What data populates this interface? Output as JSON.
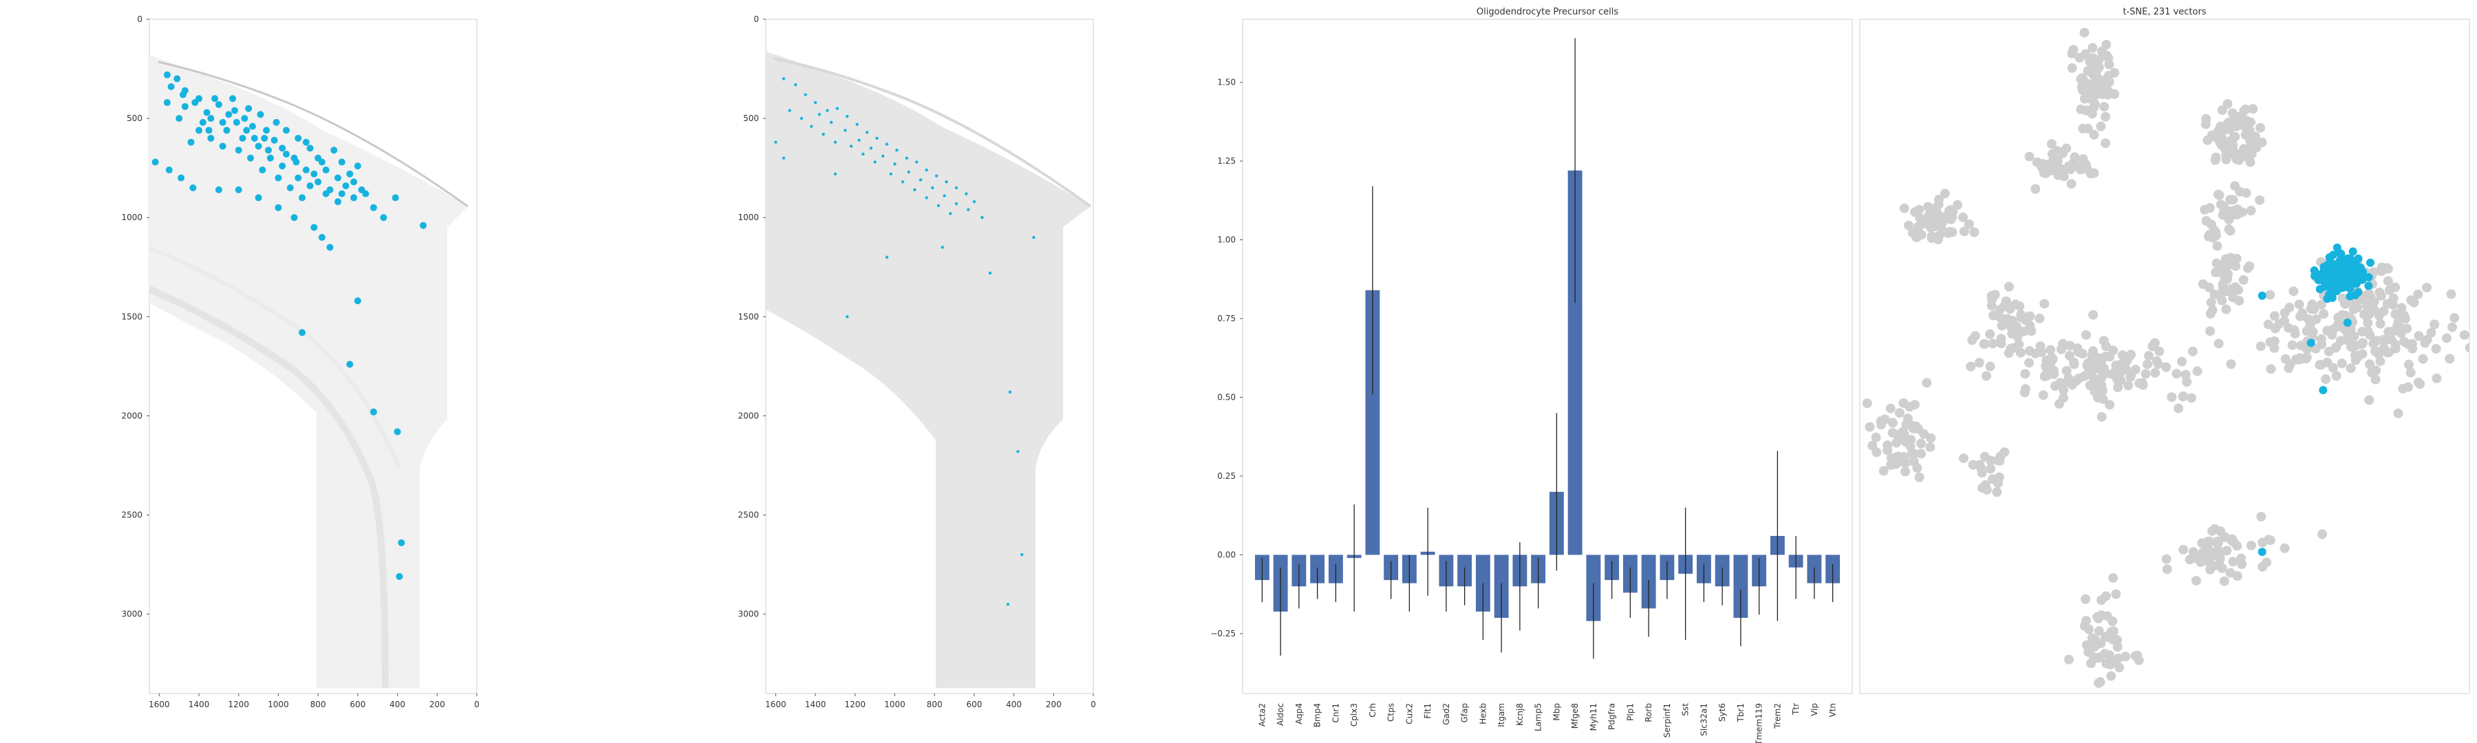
{
  "colors": {
    "highlight": "#16b3df",
    "bar": "#4c6fad",
    "background_cells": "#cfcfcf",
    "tissue": "#dcdcdc",
    "errorbar": "#222222",
    "frame": "#cccccc"
  },
  "chart_data": [
    {
      "id": "spatial-raw",
      "type": "scatter",
      "title": "",
      "xlabel": "",
      "ylabel": "",
      "xlim": [
        1650,
        0
      ],
      "ylim": [
        3400,
        0
      ],
      "x_ticks": [
        1600,
        1400,
        1200,
        1000,
        800,
        600,
        400,
        200,
        0
      ],
      "y_ticks": [
        0,
        500,
        1000,
        1500,
        2000,
        2500,
        3000
      ],
      "grid": false,
      "series": [
        {
          "points": [
            [
              1560,
              280
            ],
            [
              1510,
              300
            ],
            [
              1470,
              360
            ],
            [
              1420,
              420
            ],
            [
              1360,
              470
            ],
            [
              1300,
              430
            ],
            [
              1250,
              480
            ],
            [
              1210,
              520
            ],
            [
              1160,
              560
            ],
            [
              1120,
              600
            ],
            [
              1060,
              560
            ],
            [
              1020,
              610
            ],
            [
              980,
              650
            ],
            [
              920,
              700
            ],
            [
              860,
              620
            ],
            [
              800,
              700
            ],
            [
              760,
              760
            ],
            [
              700,
              800
            ],
            [
              660,
              840
            ],
            [
              620,
              900
            ],
            [
              1400,
              560
            ],
            [
              1340,
              600
            ],
            [
              1280,
              640
            ],
            [
              1200,
              660
            ],
            [
              1140,
              700
            ],
            [
              1080,
              760
            ],
            [
              1000,
              800
            ],
            [
              940,
              850
            ],
            [
              880,
              900
            ],
            [
              820,
              780
            ],
            [
              1560,
              420
            ],
            [
              1500,
              500
            ],
            [
              1440,
              620
            ],
            [
              1380,
              520
            ],
            [
              1260,
              560
            ],
            [
              1180,
              600
            ],
            [
              1100,
              640
            ],
            [
              1040,
              700
            ],
            [
              980,
              740
            ],
            [
              900,
              800
            ],
            [
              840,
              840
            ],
            [
              760,
              880
            ],
            [
              700,
              920
            ],
            [
              640,
              780
            ],
            [
              580,
              860
            ],
            [
              520,
              950
            ],
            [
              470,
              1000
            ],
            [
              410,
              900
            ],
            [
              1320,
              400
            ],
            [
              1230,
              400
            ],
            [
              1150,
              450
            ],
            [
              1090,
              480
            ],
            [
              1010,
              520
            ],
            [
              960,
              560
            ],
            [
              900,
              600
            ],
            [
              840,
              650
            ],
            [
              780,
              720
            ],
            [
              720,
              660
            ],
            [
              680,
              720
            ],
            [
              600,
              740
            ],
            [
              1620,
              720
            ],
            [
              1550,
              760
            ],
            [
              1490,
              800
            ],
            [
              1430,
              850
            ],
            [
              1300,
              860
            ],
            [
              1200,
              860
            ],
            [
              1100,
              900
            ],
            [
              1000,
              950
            ],
            [
              920,
              1000
            ],
            [
              820,
              1050
            ],
            [
              780,
              1100
            ],
            [
              740,
              1150
            ],
            [
              270,
              1040
            ],
            [
              600,
              1420
            ],
            [
              880,
              1580
            ],
            [
              640,
              1740
            ],
            [
              520,
              1980
            ],
            [
              400,
              2080
            ],
            [
              380,
              2640
            ],
            [
              390,
              2810
            ],
            [
              1540,
              340
            ],
            [
              1480,
              380
            ],
            [
              1400,
              400
            ],
            [
              1340,
              500
            ],
            [
              1280,
              520
            ],
            [
              1220,
              460
            ],
            [
              1170,
              500
            ],
            [
              1130,
              540
            ],
            [
              1070,
              600
            ],
            [
              1050,
              660
            ],
            [
              960,
              680
            ],
            [
              910,
              720
            ],
            [
              860,
              760
            ],
            [
              800,
              820
            ],
            [
              740,
              860
            ],
            [
              680,
              880
            ],
            [
              620,
              820
            ],
            [
              560,
              880
            ],
            [
              1470,
              440
            ],
            [
              1350,
              560
            ]
          ]
        }
      ]
    },
    {
      "id": "spatial-cells",
      "type": "scatter",
      "title": "",
      "xlabel": "",
      "ylabel": "",
      "xlim": [
        1650,
        0
      ],
      "ylim": [
        3400,
        0
      ],
      "x_ticks": [
        1600,
        1400,
        1200,
        1000,
        800,
        600,
        400,
        200,
        0
      ],
      "y_ticks": [
        0,
        500,
        1000,
        1500,
        2000,
        2500,
        3000
      ],
      "grid": false,
      "series": [
        {
          "points": [
            [
              1560,
              300
            ],
            [
              1500,
              330
            ],
            [
              1450,
              380
            ],
            [
              1400,
              420
            ],
            [
              1340,
              460
            ],
            [
              1290,
              450
            ],
            [
              1240,
              490
            ],
            [
              1190,
              530
            ],
            [
              1140,
              570
            ],
            [
              1090,
              600
            ],
            [
              1040,
              630
            ],
            [
              990,
              660
            ],
            [
              940,
              700
            ],
            [
              890,
              720
            ],
            [
              840,
              760
            ],
            [
              790,
              790
            ],
            [
              740,
              820
            ],
            [
              690,
              850
            ],
            [
              640,
              880
            ],
            [
              600,
              920
            ],
            [
              1420,
              540
            ],
            [
              1360,
              580
            ],
            [
              1300,
              620
            ],
            [
              1220,
              640
            ],
            [
              1160,
              680
            ],
            [
              1100,
              720
            ],
            [
              1020,
              780
            ],
            [
              960,
              820
            ],
            [
              900,
              860
            ],
            [
              840,
              900
            ],
            [
              780,
              940
            ],
            [
              720,
              980
            ],
            [
              1530,
              460
            ],
            [
              1470,
              500
            ],
            [
              1380,
              480
            ],
            [
              1320,
              520
            ],
            [
              1250,
              560
            ],
            [
              1180,
              610
            ],
            [
              1120,
              650
            ],
            [
              1060,
              690
            ],
            [
              1000,
              730
            ],
            [
              930,
              770
            ],
            [
              870,
              810
            ],
            [
              810,
              850
            ],
            [
              750,
              890
            ],
            [
              690,
              930
            ],
            [
              630,
              960
            ],
            [
              560,
              1000
            ],
            [
              1600,
              620
            ],
            [
              1560,
              700
            ],
            [
              1240,
              1500
            ],
            [
              1040,
              1200
            ],
            [
              760,
              1150
            ],
            [
              520,
              1280
            ],
            [
              420,
              1880
            ],
            [
              380,
              2180
            ],
            [
              360,
              2700
            ],
            [
              430,
              2950
            ],
            [
              300,
              1100
            ],
            [
              1300,
              780
            ]
          ]
        }
      ]
    },
    {
      "id": "bar-opc",
      "type": "bar",
      "title": "Oligodendrocyte Precursor cells",
      "xlabel": "",
      "ylabel": "",
      "ylim": [
        -0.44,
        1.7
      ],
      "y_ticks": [
        -0.25,
        0.0,
        0.25,
        0.5,
        0.75,
        1.0,
        1.25,
        1.5
      ],
      "y_tick_labels": [
        "−0.25",
        "0.00",
        "0.25",
        "0.50",
        "0.75",
        "1.00",
        "1.25",
        "1.50"
      ],
      "categories": [
        "Acta2",
        "Aldoc",
        "Aqp4",
        "Bmp4",
        "Cnr1",
        "Cplx3",
        "Crh",
        "Ctps",
        "Cux2",
        "Flt1",
        "Gad2",
        "Gfap",
        "Hexb",
        "Itgam",
        "Kcnj8",
        "Lamp5",
        "Mbp",
        "Mfge8",
        "Myh11",
        "Pdgfra",
        "Plp1",
        "Rorb",
        "Serpinf1",
        "Sst",
        "Slc32a1",
        "Syt6",
        "Tbr1",
        "Tmem119",
        "Trem2",
        "Ttr",
        "Vip",
        "Vtn"
      ],
      "values": [
        -0.08,
        -0.18,
        -0.1,
        -0.09,
        -0.09,
        -0.01,
        0.84,
        -0.08,
        -0.09,
        0.01,
        -0.1,
        -0.1,
        -0.18,
        -0.2,
        -0.1,
        -0.09,
        0.2,
        1.22,
        -0.21,
        -0.08,
        -0.12,
        -0.17,
        -0.08,
        -0.06,
        -0.09,
        -0.1,
        -0.2,
        -0.1,
        0.06,
        -0.04,
        -0.09,
        -0.09
      ],
      "errors": [
        0.07,
        0.14,
        0.07,
        0.05,
        0.06,
        0.17,
        0.33,
        0.06,
        0.09,
        0.14,
        0.08,
        0.06,
        0.09,
        0.11,
        0.14,
        0.08,
        0.25,
        0.42,
        0.12,
        0.06,
        0.08,
        0.09,
        0.06,
        0.21,
        0.06,
        0.06,
        0.09,
        0.09,
        0.27,
        0.1,
        0.05,
        0.06
      ]
    },
    {
      "id": "tsne",
      "type": "scatter",
      "title": "t-SNE, 231 vectors",
      "xlabel": "",
      "ylabel": "",
      "xlim": [
        0,
        100
      ],
      "ylim": [
        0,
        100
      ],
      "grid": false,
      "series": [
        {
          "clusters": [
            {
              "center": [
                38,
                91
              ],
              "spread": [
                2.0,
                3.5
              ],
              "count": 70
            },
            {
              "center": [
                33,
                78
              ],
              "spread": [
                2.2,
                1.8
              ],
              "count": 40
            },
            {
              "center": [
                62,
                83
              ],
              "spread": [
                2.6,
                2.6
              ],
              "count": 70
            },
            {
              "center": [
                60,
                71
              ],
              "spread": [
                1.6,
                2.0
              ],
              "count": 35
            },
            {
              "center": [
                13,
                70
              ],
              "spread": [
                2.5,
                1.8
              ],
              "count": 50
            },
            {
              "center": [
                25,
                55
              ],
              "spread": [
                2.5,
                3.0
              ],
              "count": 45
            },
            {
              "center": [
                40,
                48
              ],
              "spread": [
                9.0,
                2.8
              ],
              "count": 140
            },
            {
              "center": [
                60,
                61
              ],
              "spread": [
                2.0,
                3.0
              ],
              "count": 40
            },
            {
              "center": [
                80,
                53
              ],
              "spread": [
                9.0,
                3.5
              ],
              "count": 170
            },
            {
              "center": [
                82,
                60
              ],
              "spread": [
                4.0,
                2.0
              ],
              "count": 40
            },
            {
              "center": [
                7,
                38
              ],
              "spread": [
                2.5,
                3.5
              ],
              "count": 55
            },
            {
              "center": [
                21,
                33
              ],
              "spread": [
                2.0,
                1.5
              ],
              "count": 20
            },
            {
              "center": [
                59,
                21
              ],
              "spread": [
                4.5,
                2.2
              ],
              "count": 55
            },
            {
              "center": [
                40,
                8
              ],
              "spread": [
                2.5,
                3.2
              ],
              "count": 50
            }
          ]
        },
        {
          "clusters": [
            {
              "center": [
                79,
                62
              ],
              "spread": [
                2.0,
                1.4
              ],
              "count": 140
            }
          ],
          "outliers": [
            [
              66,
              59
            ],
            [
              74,
              52
            ],
            [
              80,
              55
            ],
            [
              76,
              45
            ],
            [
              66,
              21
            ]
          ]
        }
      ]
    }
  ]
}
